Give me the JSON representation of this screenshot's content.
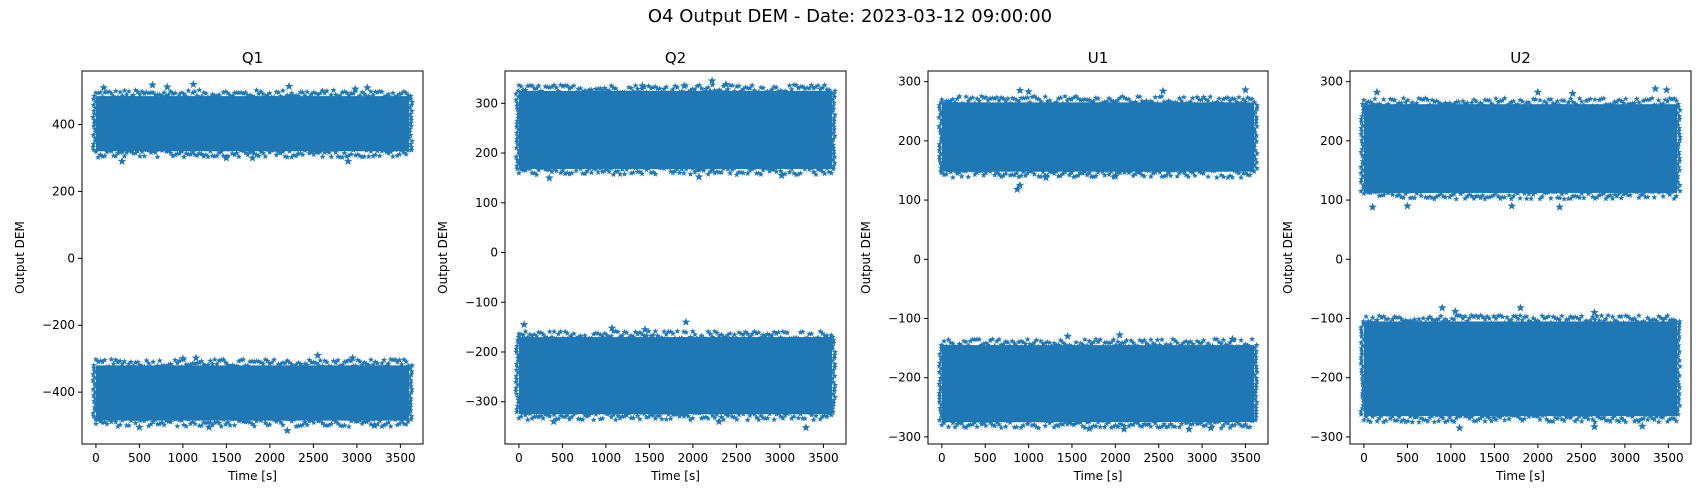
{
  "suptitle": "O4 Output DEM - Date: 2023-03-12 09:00:00",
  "colors": {
    "marker": "#1f77b4"
  },
  "chart_data": [
    {
      "type": "scatter",
      "title": "Q1",
      "xlabel": "Time [s]",
      "ylabel": "Output DEM",
      "marker": "star",
      "xlim": [
        -160,
        3760
      ],
      "ylim": [
        -555,
        560
      ],
      "xticks": [
        0,
        500,
        1000,
        1500,
        2000,
        2500,
        3000,
        3500
      ],
      "yticks": [
        -400,
        -200,
        0,
        200,
        400
      ],
      "bands": [
        {
          "x_range": [
            0,
            3600
          ],
          "core": [
            320,
            485
          ],
          "outliers": [
            [
              90,
              510
            ],
            [
              650,
              518
            ],
            [
              820,
              512
            ],
            [
              1120,
              520
            ],
            [
              2220,
              514
            ],
            [
              2980,
              506
            ],
            [
              3120,
              510
            ],
            [
              300,
              290
            ],
            [
              1500,
              300
            ],
            [
              2900,
              290
            ],
            [
              1800,
              300
            ]
          ]
        },
        {
          "x_range": [
            0,
            3600
          ],
          "core": [
            -485,
            -320
          ],
          "outliers": [
            [
              1000,
              -300
            ],
            [
              1150,
              -298
            ],
            [
              2550,
              -290
            ],
            [
              2950,
              -298
            ],
            [
              2200,
              -515
            ],
            [
              500,
              -505
            ],
            [
              1300,
              -505
            ],
            [
              3200,
              -500
            ]
          ]
        }
      ]
    },
    {
      "type": "scatter",
      "title": "Q2",
      "xlabel": "Time [s]",
      "ylabel": "Output DEM",
      "marker": "star",
      "xlim": [
        -160,
        3760
      ],
      "ylim": [
        -385,
        365
      ],
      "xticks": [
        0,
        500,
        1000,
        1500,
        2000,
        2500,
        3000,
        3500
      ],
      "yticks": [
        -300,
        -200,
        -100,
        0,
        100,
        200,
        300
      ],
      "bands": [
        {
          "x_range": [
            0,
            3600
          ],
          "core": [
            168,
            325
          ],
          "outliers": [
            [
              2220,
              345
            ],
            [
              2380,
              338
            ],
            [
              1420,
              335
            ],
            [
              1900,
              335
            ],
            [
              350,
              150
            ],
            [
              2070,
              152
            ],
            [
              3020,
              155
            ]
          ]
        },
        {
          "x_range": [
            0,
            3600
          ],
          "core": [
            -325,
            -170
          ],
          "outliers": [
            [
              60,
              -145
            ],
            [
              1920,
              -140
            ],
            [
              1070,
              -152
            ],
            [
              1450,
              -155
            ],
            [
              3300,
              -352
            ],
            [
              400,
              -340
            ],
            [
              2300,
              -340
            ]
          ]
        }
      ]
    },
    {
      "type": "scatter",
      "title": "U1",
      "xlabel": "Time [s]",
      "ylabel": "Output DEM",
      "marker": "star",
      "xlim": [
        -160,
        3760
      ],
      "ylim": [
        -312,
        318
      ],
      "xticks": [
        0,
        500,
        1000,
        1500,
        2000,
        2500,
        3000,
        3500
      ],
      "yticks": [
        -300,
        -200,
        -100,
        0,
        100,
        200,
        300
      ],
      "bands": [
        {
          "x_range": [
            0,
            3600
          ],
          "core": [
            148,
            265
          ],
          "outliers": [
            [
              2550,
              284
            ],
            [
              3500,
              286
            ],
            [
              900,
              285
            ],
            [
              1000,
              283
            ],
            [
              870,
              118
            ],
            [
              900,
              125
            ],
            [
              1200,
              138
            ],
            [
              2000,
              140
            ]
          ]
        },
        {
          "x_range": [
            0,
            3600
          ],
          "core": [
            -275,
            -145
          ],
          "outliers": [
            [
              2050,
              -128
            ],
            [
              1450,
              -130
            ],
            [
              3350,
              -135
            ],
            [
              1700,
              -286
            ],
            [
              2100,
              -287
            ],
            [
              2850,
              -287
            ],
            [
              3100,
              -285
            ]
          ]
        }
      ]
    },
    {
      "type": "scatter",
      "title": "U2",
      "xlabel": "Time [s]",
      "ylabel": "Output DEM",
      "marker": "star",
      "xlim": [
        -160,
        3760
      ],
      "ylim": [
        -312,
        318
      ],
      "xticks": [
        0,
        500,
        1000,
        1500,
        2000,
        2500,
        3000,
        3500
      ],
      "yticks": [
        -300,
        -200,
        -100,
        0,
        100,
        200,
        300
      ],
      "bands": [
        {
          "x_range": [
            0,
            3600
          ],
          "core": [
            112,
            262
          ],
          "outliers": [
            [
              3350,
              288
            ],
            [
              3480,
              286
            ],
            [
              150,
              282
            ],
            [
              2000,
              282
            ],
            [
              2400,
              280
            ],
            [
              100,
              88
            ],
            [
              500,
              90
            ],
            [
              1700,
              90
            ],
            [
              2250,
              88
            ]
          ]
        },
        {
          "x_range": [
            0,
            3600
          ],
          "core": [
            -265,
            -105
          ],
          "outliers": [
            [
              900,
              -82
            ],
            [
              1800,
              -82
            ],
            [
              1050,
              -88
            ],
            [
              2650,
              -90
            ],
            [
              1100,
              -285
            ],
            [
              2650,
              -283
            ],
            [
              3200,
              -282
            ]
          ]
        }
      ]
    }
  ]
}
